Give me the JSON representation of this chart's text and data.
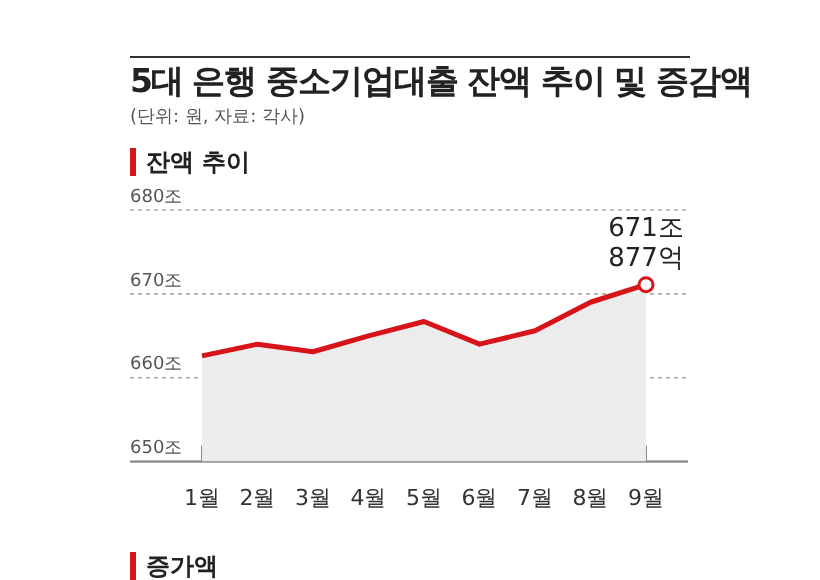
{
  "chart_data": {
    "type": "area",
    "title": "5대 은행 중소기업대출 잔액 추이 및 증감액",
    "subtitle": "(단위: 원, 자료: 각사)",
    "categories": [
      "1월",
      "2월",
      "3월",
      "4월",
      "5월",
      "6월",
      "7월",
      "8월",
      "9월"
    ],
    "series": [
      {
        "color": "#d7141a",
        "values": [
          662.6,
          664.0,
          663.1,
          665.0,
          666.7,
          664.0,
          665.6,
          669.0,
          671.1
        ]
      }
    ],
    "ylim": [
      650,
      680
    ],
    "yticks": [
      {
        "value": 650,
        "label": "650조"
      },
      {
        "value": 660,
        "label": "660조"
      },
      {
        "value": 670,
        "label": "670조"
      },
      {
        "value": 680,
        "label": "680조"
      }
    ],
    "grid": "y",
    "marker": "none",
    "line_style": "solid",
    "annotations": [
      "잔액 추이",
      {
        "text": "671조\n877억",
        "x": "9월",
        "y": 671.1
      },
      "증가액"
    ]
  }
}
